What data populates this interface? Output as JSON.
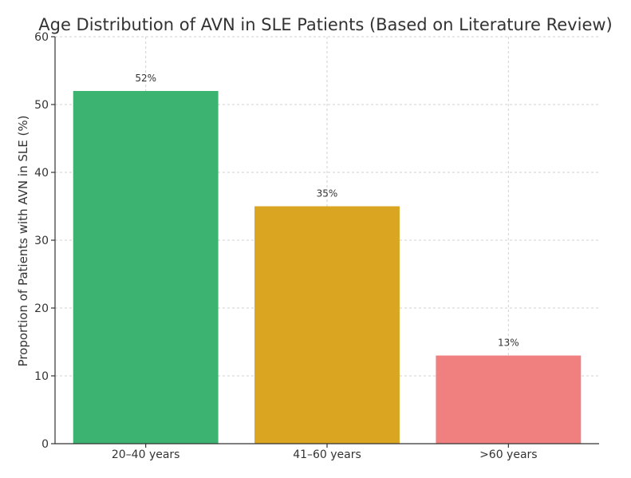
{
  "chart_data": {
    "type": "bar",
    "title": "Age Distribution of AVN in SLE Patients (Based on Literature Review)",
    "xlabel": "",
    "ylabel": "Proportion of Patients with AVN in SLE (%)",
    "categories": [
      "20–40 years",
      "41–60 years",
      ">60 years"
    ],
    "values": [
      52,
      35,
      13
    ],
    "data_labels": [
      "52%",
      "35%",
      "13%"
    ],
    "colors": [
      "#3cb371",
      "#daa520",
      "#f08080"
    ],
    "ylim": [
      0,
      60
    ],
    "yticks": [
      0,
      10,
      20,
      30,
      40,
      50,
      60
    ],
    "grid": true
  }
}
